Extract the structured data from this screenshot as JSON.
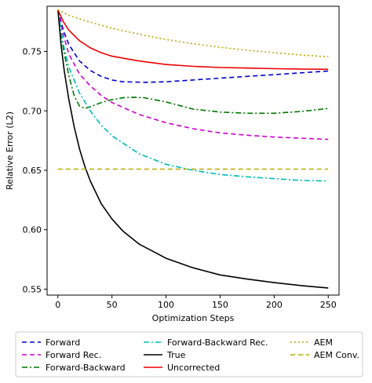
{
  "chart_data": {
    "type": "line",
    "xlabel": "Optimization Steps",
    "ylabel": "Relative Error (L2)",
    "xlim": [
      -10,
      260
    ],
    "ylim": [
      0.545,
      0.788
    ],
    "xticks": [
      0,
      50,
      100,
      150,
      200,
      250
    ],
    "yticks": [
      0.55,
      0.6,
      0.65,
      0.7,
      0.75
    ],
    "ytick_labels": [
      "0.55",
      "0.60",
      "0.65",
      "0.70",
      "0.75"
    ],
    "grid": false,
    "legend_position": "bottom, outside plot (3 columns)",
    "series": [
      {
        "name": "Forward",
        "color": "#0000cc",
        "dash": "6,4",
        "x": [
          0,
          5,
          10,
          20,
          30,
          40,
          50,
          60,
          80,
          100,
          125,
          150,
          175,
          200,
          225,
          250
        ],
        "y": [
          0.785,
          0.768,
          0.756,
          0.742,
          0.734,
          0.729,
          0.726,
          0.7245,
          0.724,
          0.7245,
          0.726,
          0.7275,
          0.729,
          0.7305,
          0.732,
          0.7335
        ]
      },
      {
        "name": "Forward Rec.",
        "color": "#cc00cc",
        "dash": "6,4",
        "x": [
          0,
          5,
          10,
          20,
          30,
          40,
          50,
          75,
          100,
          125,
          150,
          175,
          200,
          225,
          250
        ],
        "y": [
          0.785,
          0.764,
          0.748,
          0.731,
          0.721,
          0.713,
          0.707,
          0.697,
          0.69,
          0.685,
          0.6815,
          0.6795,
          0.678,
          0.677,
          0.676
        ]
      },
      {
        "name": "Forward-Backward",
        "color": "#007700",
        "dash": "7,3,2,3",
        "x": [
          0,
          5,
          10,
          15,
          20,
          25,
          30,
          40,
          50,
          60,
          70,
          80,
          100,
          125,
          150,
          175,
          200,
          225,
          250
        ],
        "y": [
          0.785,
          0.752,
          0.73,
          0.713,
          0.704,
          0.702,
          0.7035,
          0.707,
          0.7095,
          0.711,
          0.7115,
          0.711,
          0.7075,
          0.7015,
          0.699,
          0.698,
          0.698,
          0.6995,
          0.702
        ]
      },
      {
        "name": "Forward-Backward Rec.",
        "color": "#00bbbb",
        "dash": "7,3,2,3",
        "x": [
          0,
          5,
          10,
          20,
          30,
          40,
          50,
          75,
          100,
          125,
          150,
          175,
          200,
          225,
          250
        ],
        "y": [
          0.785,
          0.756,
          0.737,
          0.715,
          0.7,
          0.688,
          0.679,
          0.664,
          0.655,
          0.65,
          0.6465,
          0.6445,
          0.643,
          0.6415,
          0.641
        ]
      },
      {
        "name": "True",
        "color": "#000000",
        "dash": "",
        "x": [
          0,
          3,
          6,
          10,
          15,
          20,
          25,
          30,
          40,
          50,
          60,
          75,
          100,
          125,
          150,
          175,
          200,
          225,
          250
        ],
        "y": [
          0.785,
          0.755,
          0.733,
          0.71,
          0.687,
          0.668,
          0.653,
          0.641,
          0.622,
          0.609,
          0.599,
          0.588,
          0.576,
          0.568,
          0.562,
          0.5585,
          0.5555,
          0.553,
          0.551
        ]
      },
      {
        "name": "Uncorrected",
        "color": "#ee0000",
        "dash": "",
        "x": [
          0,
          5,
          10,
          20,
          30,
          40,
          50,
          75,
          100,
          125,
          150,
          175,
          200,
          225,
          250
        ],
        "y": [
          0.785,
          0.775,
          0.768,
          0.759,
          0.753,
          0.749,
          0.746,
          0.742,
          0.739,
          0.7375,
          0.7365,
          0.736,
          0.7355,
          0.7352,
          0.735
        ]
      },
      {
        "name": "AEM",
        "color": "#bbaa00",
        "dash": "2,3",
        "x": [
          0,
          10,
          25,
          50,
          75,
          100,
          125,
          150,
          175,
          200,
          225,
          250
        ],
        "y": [
          0.785,
          0.7805,
          0.776,
          0.7695,
          0.7645,
          0.76,
          0.7565,
          0.7535,
          0.751,
          0.749,
          0.747,
          0.7455
        ]
      },
      {
        "name": "AEM Conv.",
        "color": "#bbaa00",
        "dash": "6,4",
        "x": [
          0,
          250
        ],
        "y": [
          0.651,
          0.651
        ]
      }
    ]
  }
}
